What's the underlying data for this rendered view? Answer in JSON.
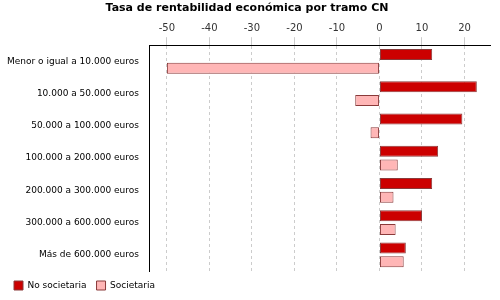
{
  "chart_data": {
    "type": "bar",
    "title": "Tasa de rentabilidad económica por tramo CN",
    "orientation": "horizontal",
    "categories": [
      "Menor o igual a 10.000 euros",
      "10.000 a 50.000 euros",
      "50.000 a 100.000 euros",
      "100.000 a 200.000 euros",
      "200.000 a 300.000 euros",
      "300.000 a 600.000 euros",
      "Más de 600.000 euros"
    ],
    "series": [
      {
        "name": "No societaria",
        "color": "#cc0000",
        "values": [
          12.4,
          22.9,
          19.5,
          13.8,
          12.4,
          10.0,
          6.2
        ]
      },
      {
        "name": "Societaria",
        "color": "#ffb6b6",
        "values": [
          -50,
          -5.7,
          -2.1,
          4.3,
          3.3,
          3.8,
          5.7
        ]
      }
    ],
    "xlim": [
      -54,
      26
    ],
    "xticks": [
      -50,
      -40,
      -30,
      -20,
      -10,
      0,
      10,
      20
    ],
    "grid": true,
    "legend": "bottom-left"
  }
}
